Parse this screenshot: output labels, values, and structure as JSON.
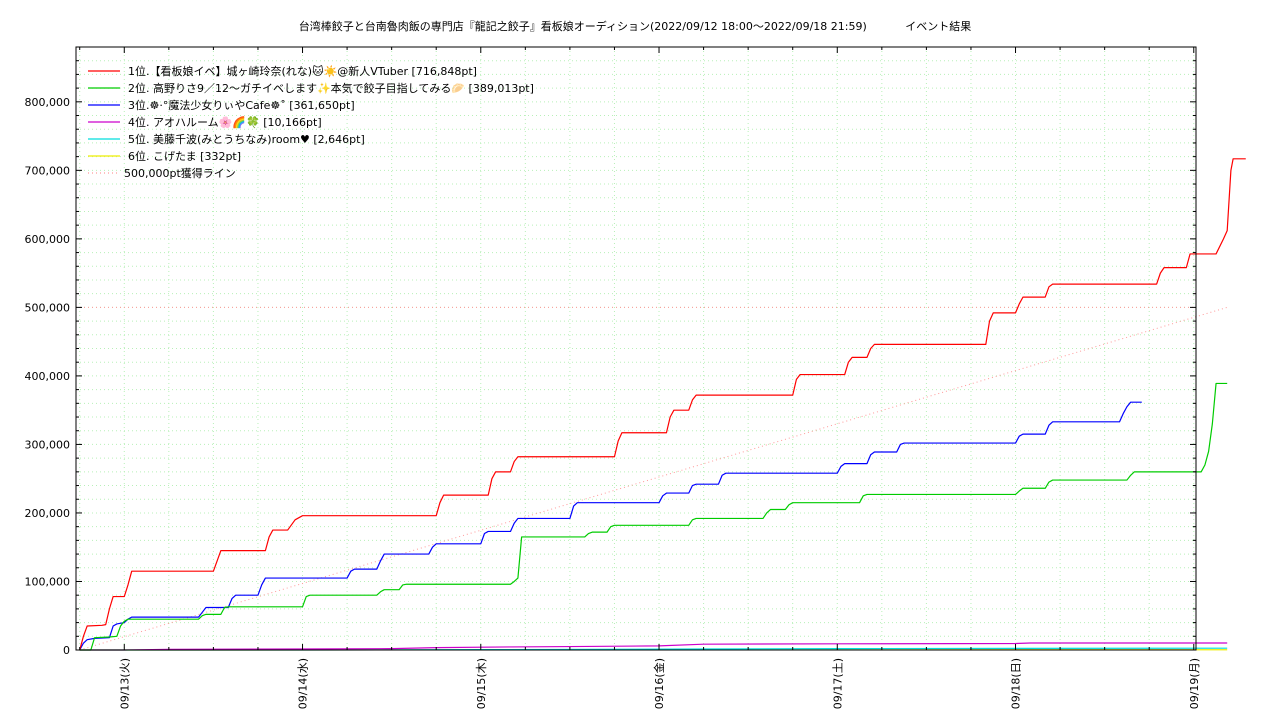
{
  "chart_data": {
    "type": "line",
    "title": "台湾棒餃子と台南魯肉飯の専門店『龍記之餃子』看板娘オーディション(2022/09/12 18:00〜2022/09/18 21:59)           イベント結果",
    "xlabel": "",
    "ylabel": "",
    "x_tick_labels": [
      "09/13(火)",
      "09/14(水)",
      "09/15(木)",
      "09/16(金)",
      "09/17(土)",
      "09/18(日)",
      "09/19(月)"
    ],
    "y_tick_labels": [
      "0",
      "100,000",
      "200,000",
      "300,000",
      "400,000",
      "500,000",
      "600,000",
      "700,000",
      "800,000"
    ],
    "xlim_hours": [
      -6.5,
      144.3
    ],
    "ylim": [
      0,
      880000
    ],
    "grid": true,
    "legend_position": "top-left",
    "x_unit": "hours from 2022/09/13 00:00",
    "series": [
      {
        "name": "1位.【看板娘イベ】城ヶ崎玲奈(れな)🐱☀️@新人VTuber [716,848pt]",
        "color": "#ff0000",
        "points": [
          [
            -6,
            0
          ],
          [
            -5.5,
            20000
          ],
          [
            -5,
            35000
          ],
          [
            -3,
            36000
          ],
          [
            -2.5,
            37000
          ],
          [
            -2,
            60000
          ],
          [
            -1.5,
            78000
          ],
          [
            -1,
            78000
          ],
          [
            0,
            78000
          ],
          [
            0.5,
            95000
          ],
          [
            1,
            115000
          ],
          [
            10,
            115000
          ],
          [
            12,
            115000
          ],
          [
            12.5,
            130000
          ],
          [
            13,
            145000
          ],
          [
            19,
            145000
          ],
          [
            19.5,
            165000
          ],
          [
            20,
            175000
          ],
          [
            22,
            175000
          ],
          [
            23,
            190000
          ],
          [
            24,
            196000
          ],
          [
            36,
            196000
          ],
          [
            42,
            196000
          ],
          [
            42.5,
            215000
          ],
          [
            43,
            226000
          ],
          [
            49,
            226000
          ],
          [
            49.5,
            250000
          ],
          [
            50,
            260000
          ],
          [
            52,
            260000
          ],
          [
            52.5,
            275000
          ],
          [
            53,
            282000
          ],
          [
            60,
            282000
          ],
          [
            66,
            282000
          ],
          [
            66.5,
            305000
          ],
          [
            67,
            317000
          ],
          [
            73,
            317000
          ],
          [
            73.5,
            340000
          ],
          [
            74,
            350000
          ],
          [
            76,
            350000
          ],
          [
            76.5,
            365000
          ],
          [
            77,
            372000
          ],
          [
            84,
            372000
          ],
          [
            90,
            372000
          ],
          [
            90.5,
            395000
          ],
          [
            91,
            402000
          ],
          [
            97,
            402000
          ],
          [
            97.5,
            420000
          ],
          [
            98,
            427000
          ],
          [
            100,
            427000
          ],
          [
            100.5,
            440000
          ],
          [
            101,
            446000
          ],
          [
            108,
            446000
          ],
          [
            116,
            446000
          ],
          [
            116.5,
            480000
          ],
          [
            117,
            492000
          ],
          [
            120,
            492000
          ],
          [
            120.5,
            505000
          ],
          [
            121,
            515000
          ],
          [
            124,
            515000
          ],
          [
            124.5,
            530000
          ],
          [
            125,
            534000
          ],
          [
            132,
            534000
          ],
          [
            139,
            534000
          ],
          [
            139.5,
            550000
          ],
          [
            140,
            558000
          ],
          [
            143,
            558000
          ],
          [
            143.5,
            578000
          ],
          [
            147,
            578000
          ],
          [
            148,
            600000
          ],
          [
            148.5,
            612000
          ],
          [
            149,
            700000
          ],
          [
            149.3,
            716848
          ],
          [
            151,
            716848
          ]
        ]
      },
      {
        "name": "2位. 高野りさ9／12〜ガチイベします✨本気で餃子目指してみる🥟 [389,013pt]",
        "color": "#00cc00",
        "points": [
          [
            -6,
            0
          ],
          [
            -4.5,
            0
          ],
          [
            -4,
            18000
          ],
          [
            -2,
            19000
          ],
          [
            -1,
            20000
          ],
          [
            -0.5,
            35000
          ],
          [
            0,
            42000
          ],
          [
            0.5,
            45000
          ],
          [
            10,
            45000
          ],
          [
            10.5,
            50000
          ],
          [
            11,
            52000
          ],
          [
            13,
            52000
          ],
          [
            13.5,
            62000
          ],
          [
            14,
            63000
          ],
          [
            24,
            63000
          ],
          [
            24.5,
            78000
          ],
          [
            25,
            80000
          ],
          [
            34,
            80000
          ],
          [
            34.5,
            85000
          ],
          [
            35,
            88000
          ],
          [
            37,
            88000
          ],
          [
            37.5,
            95000
          ],
          [
            38,
            96000
          ],
          [
            44,
            96000
          ],
          [
            52,
            96000
          ],
          [
            52.5,
            100000
          ],
          [
            53,
            105000
          ],
          [
            53.5,
            165000
          ],
          [
            60,
            165000
          ],
          [
            62,
            165000
          ],
          [
            62.5,
            170000
          ],
          [
            63,
            172000
          ],
          [
            65,
            172000
          ],
          [
            65.5,
            180000
          ],
          [
            66,
            182000
          ],
          [
            72,
            182000
          ],
          [
            76,
            182000
          ],
          [
            76.5,
            190000
          ],
          [
            77,
            192000
          ],
          [
            84,
            192000
          ],
          [
            86,
            192000
          ],
          [
            86.5,
            200000
          ],
          [
            87,
            205000
          ],
          [
            89,
            205000
          ],
          [
            89.5,
            212000
          ],
          [
            90,
            215000
          ],
          [
            96,
            215000
          ],
          [
            99,
            215000
          ],
          [
            99.5,
            225000
          ],
          [
            100,
            227000
          ],
          [
            108,
            227000
          ],
          [
            120,
            227000
          ],
          [
            120.5,
            232000
          ],
          [
            121,
            236000
          ],
          [
            124,
            236000
          ],
          [
            124.5,
            245000
          ],
          [
            125,
            248000
          ],
          [
            132,
            248000
          ],
          [
            135,
            248000
          ],
          [
            135.5,
            255000
          ],
          [
            136,
            260000
          ],
          [
            144,
            260000
          ],
          [
            145,
            260000
          ],
          [
            145.5,
            270000
          ],
          [
            146,
            290000
          ],
          [
            146.5,
            330000
          ],
          [
            147,
            389013
          ],
          [
            148.5,
            389013
          ]
        ]
      },
      {
        "name": "3位.☸·°魔法少女りぃやCafe☸˚ [361,650pt]",
        "color": "#0000ff",
        "points": [
          [
            -6,
            0
          ],
          [
            -5.5,
            10000
          ],
          [
            -5,
            15000
          ],
          [
            -4,
            17000
          ],
          [
            -2,
            18000
          ],
          [
            -1.5,
            35000
          ],
          [
            -1,
            38000
          ],
          [
            0,
            40000
          ],
          [
            0.5,
            45000
          ],
          [
            1,
            48000
          ],
          [
            10,
            48000
          ],
          [
            10.5,
            55000
          ],
          [
            11,
            62000
          ],
          [
            14,
            62000
          ],
          [
            14.5,
            75000
          ],
          [
            15,
            80000
          ],
          [
            18,
            80000
          ],
          [
            18.5,
            95000
          ],
          [
            19,
            105000
          ],
          [
            30,
            105000
          ],
          [
            30.5,
            115000
          ],
          [
            31,
            118000
          ],
          [
            34,
            118000
          ],
          [
            34.5,
            130000
          ],
          [
            35,
            140000
          ],
          [
            41,
            140000
          ],
          [
            41.5,
            150000
          ],
          [
            42,
            155000
          ],
          [
            48,
            155000
          ],
          [
            48.5,
            170000
          ],
          [
            49,
            173000
          ],
          [
            52,
            173000
          ],
          [
            52.5,
            185000
          ],
          [
            53,
            192000
          ],
          [
            60,
            192000
          ],
          [
            60.5,
            210000
          ],
          [
            61,
            215000
          ],
          [
            72,
            215000
          ],
          [
            72.5,
            225000
          ],
          [
            73,
            229000
          ],
          [
            76,
            229000
          ],
          [
            76.5,
            240000
          ],
          [
            77,
            242000
          ],
          [
            80,
            242000
          ],
          [
            80.5,
            255000
          ],
          [
            81,
            258000
          ],
          [
            96,
            258000
          ],
          [
            96.5,
            268000
          ],
          [
            97,
            272000
          ],
          [
            100,
            272000
          ],
          [
            100.5,
            285000
          ],
          [
            101,
            289000
          ],
          [
            104,
            289000
          ],
          [
            104.5,
            300000
          ],
          [
            105,
            302000
          ],
          [
            120,
            302000
          ],
          [
            120.5,
            312000
          ],
          [
            121,
            315000
          ],
          [
            124,
            315000
          ],
          [
            124.5,
            328000
          ],
          [
            125,
            333000
          ],
          [
            132,
            333000
          ],
          [
            134,
            333000
          ],
          [
            134.5,
            345000
          ],
          [
            135,
            355000
          ],
          [
            135.5,
            361650
          ],
          [
            137,
            361650
          ]
        ]
      },
      {
        "name": "4位. アオハルーム🌸🌈🍀 [10,166pt]",
        "color": "#cc00cc",
        "points": [
          [
            -6,
            0
          ],
          [
            0,
            0
          ],
          [
            6,
            1000
          ],
          [
            24,
            1500
          ],
          [
            36,
            2000
          ],
          [
            42,
            3500
          ],
          [
            52,
            4500
          ],
          [
            60,
            5000
          ],
          [
            72,
            6000
          ],
          [
            78,
            8500
          ],
          [
            96,
            9000
          ],
          [
            120,
            9500
          ],
          [
            122,
            10166
          ],
          [
            148.5,
            10166
          ]
        ]
      },
      {
        "name": "5位. 美藤千波(みとうちなみ)room♥ [2,646pt]",
        "color": "#00dddd",
        "points": [
          [
            -6,
            0
          ],
          [
            24,
            0
          ],
          [
            48,
            500
          ],
          [
            78,
            1500
          ],
          [
            96,
            2000
          ],
          [
            120,
            2400
          ],
          [
            148.5,
            2646
          ]
        ]
      },
      {
        "name": "6位. こげたま [332pt]",
        "color": "#eeee00",
        "points": [
          [
            -6,
            0
          ],
          [
            60,
            150
          ],
          [
            100,
            300
          ],
          [
            148.5,
            332
          ]
        ]
      }
    ],
    "reference_line": {
      "name": "500,000pt獲得ライン",
      "color": "#ff9999",
      "points": [
        [
          -6,
          0
        ],
        [
          148.5,
          500000
        ]
      ],
      "horizontal_value": 500000
    }
  }
}
